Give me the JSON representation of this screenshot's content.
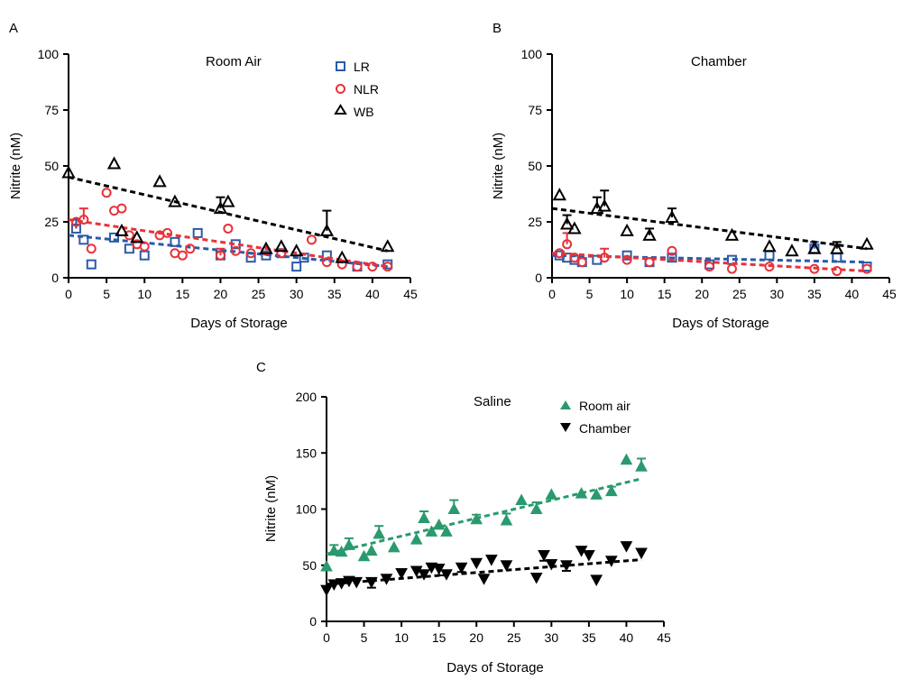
{
  "colors": {
    "LR": "#2b5aa8",
    "NLR": "#e8323a",
    "WB": "#000000",
    "room_air": "#2a9a6e",
    "chamber": "#000000"
  },
  "chart_data": [
    {
      "panel": "A",
      "type": "scatter",
      "title": "Room Air",
      "xlabel": "Days of Storage",
      "ylabel": "Nitrite (nM)",
      "xlim": [
        0,
        45
      ],
      "ylim": [
        0,
        100
      ],
      "xticks": [
        0,
        5,
        10,
        15,
        20,
        25,
        30,
        35,
        40,
        45
      ],
      "yticks": [
        0,
        25,
        50,
        75,
        100
      ],
      "legend_position": "top-right",
      "series": [
        {
          "name": "LR",
          "marker": "square",
          "color": "#2b5aa8",
          "x": [
            1,
            2,
            3,
            6,
            8,
            10,
            14,
            17,
            20,
            22,
            24,
            26,
            28,
            30,
            31,
            34,
            38,
            42
          ],
          "y": [
            22,
            17,
            6,
            18,
            13,
            10,
            16,
            20,
            10,
            15,
            9,
            10,
            11,
            5,
            9,
            10,
            5,
            6
          ],
          "err": [
            {
              "x": 1,
              "y": 22,
              "e": 4
            }
          ],
          "trend": {
            "x0": 0,
            "y0": 19,
            "x1": 42,
            "y1": 5
          }
        },
        {
          "name": "NLR",
          "marker": "circle",
          "color": "#e8323a",
          "x": [
            1,
            2,
            3,
            5,
            6,
            7,
            8,
            9,
            10,
            12,
            13,
            14,
            15,
            16,
            20,
            21,
            22,
            24,
            26,
            28,
            32,
            34,
            36,
            38,
            40,
            42
          ],
          "y": [
            25,
            26,
            13,
            38,
            30,
            31,
            19,
            15,
            14,
            19,
            20,
            11,
            10,
            13,
            10,
            22,
            12,
            11,
            12,
            11,
            17,
            7,
            6,
            5,
            5,
            5
          ],
          "err": [
            {
              "x": 2,
              "y": 26,
              "e": 5
            },
            {
              "x": 20,
              "y": 10,
              "e": 3
            }
          ],
          "trend": {
            "x0": 0,
            "y0": 26,
            "x1": 42,
            "y1": 5
          }
        },
        {
          "name": "WB",
          "marker": "triangle",
          "color": "#000000",
          "x": [
            0,
            6,
            7,
            9,
            12,
            14,
            20,
            21,
            26,
            28,
            30,
            34,
            36,
            42
          ],
          "y": [
            47,
            51,
            21,
            18,
            43,
            34,
            31,
            34,
            13,
            14,
            12,
            21,
            9,
            14
          ],
          "err": [
            {
              "x": 20,
              "y": 31,
              "e": 5
            },
            {
              "x": 34,
              "y": 21,
              "e": 9
            }
          ],
          "trend": {
            "x0": 0,
            "y0": 45,
            "x1": 42,
            "y1": 12
          }
        }
      ]
    },
    {
      "panel": "B",
      "type": "scatter",
      "title": "Chamber",
      "xlabel": "Days of Storage",
      "ylabel": "Nitrite (nM)",
      "xlim": [
        0,
        45
      ],
      "ylim": [
        0,
        100
      ],
      "xticks": [
        0,
        5,
        10,
        15,
        20,
        25,
        30,
        35,
        40,
        45
      ],
      "yticks": [
        0,
        25,
        50,
        75,
        100
      ],
      "series": [
        {
          "name": "LR",
          "marker": "square",
          "color": "#2b5aa8",
          "x": [
            1,
            2,
            3,
            4,
            6,
            10,
            13,
            16,
            21,
            24,
            29,
            35,
            38,
            42
          ],
          "y": [
            10,
            9,
            8,
            7,
            8,
            10,
            7,
            9,
            6,
            8,
            10,
            13,
            9,
            5
          ],
          "err": [
            {
              "x": 35,
              "y": 13,
              "e": 3
            }
          ],
          "trend": {
            "x0": 0,
            "y0": 10,
            "x1": 42,
            "y1": 7
          }
        },
        {
          "name": "NLR",
          "marker": "circle",
          "color": "#e8323a",
          "x": [
            1,
            2,
            3,
            4,
            7,
            10,
            13,
            16,
            21,
            24,
            29,
            35,
            38,
            42
          ],
          "y": [
            11,
            15,
            9,
            7,
            9,
            8,
            7,
            12,
            5,
            4,
            5,
            4,
            3,
            4
          ],
          "err": [
            {
              "x": 2,
              "y": 15,
              "e": 5
            },
            {
              "x": 7,
              "y": 9,
              "e": 4
            }
          ],
          "trend": {
            "x0": 0,
            "y0": 11,
            "x1": 42,
            "y1": 3
          }
        },
        {
          "name": "WB",
          "marker": "triangle",
          "color": "#000000",
          "x": [
            1,
            2,
            3,
            6,
            7,
            10,
            13,
            16,
            24,
            29,
            32,
            35,
            38,
            42
          ],
          "y": [
            37,
            24,
            22,
            31,
            32,
            21,
            19,
            27,
            19,
            14,
            12,
            13,
            13,
            15
          ],
          "err": [
            {
              "x": 2,
              "y": 24,
              "e": 4
            },
            {
              "x": 6,
              "y": 31,
              "e": 5
            },
            {
              "x": 7,
              "y": 32,
              "e": 7
            },
            {
              "x": 13,
              "y": 19,
              "e": 3
            },
            {
              "x": 16,
              "y": 27,
              "e": 4
            },
            {
              "x": 38,
              "y": 13,
              "e": 3
            }
          ],
          "trend": {
            "x0": 0,
            "y0": 31,
            "x1": 42,
            "y1": 13
          }
        }
      ]
    },
    {
      "panel": "C",
      "type": "scatter",
      "title": "Saline",
      "xlabel": "Days of Storage",
      "ylabel": "Nitrite (nM)",
      "xlim": [
        0,
        45
      ],
      "ylim": [
        0,
        200
      ],
      "xticks": [
        0,
        5,
        10,
        15,
        20,
        25,
        30,
        35,
        40,
        45
      ],
      "yticks": [
        0,
        50,
        100,
        150,
        200
      ],
      "legend_position": "top-right",
      "series": [
        {
          "name": "Room air",
          "marker": "triangle",
          "color": "#2a9a6e",
          "x": [
            0,
            1,
            2,
            3,
            5,
            6,
            7,
            9,
            12,
            13,
            14,
            15,
            16,
            17,
            20,
            24,
            26,
            28,
            30,
            34,
            36,
            38,
            40,
            42
          ],
          "y": [
            49,
            63,
            62,
            68,
            58,
            63,
            78,
            66,
            73,
            92,
            80,
            86,
            80,
            100,
            91,
            90,
            108,
            100,
            113,
            114,
            113,
            116,
            144,
            138
          ],
          "err": [
            {
              "x": 1,
              "y": 63,
              "e": 5
            },
            {
              "x": 3,
              "y": 68,
              "e": 6
            },
            {
              "x": 7,
              "y": 78,
              "e": 7
            },
            {
              "x": 13,
              "y": 92,
              "e": 6
            },
            {
              "x": 17,
              "y": 100,
              "e": 8
            },
            {
              "x": 20,
              "y": 91,
              "e": 4
            },
            {
              "x": 24,
              "y": 90,
              "e": 6
            },
            {
              "x": 28,
              "y": 100,
              "e": 6
            },
            {
              "x": 38,
              "y": 116,
              "e": 4
            },
            {
              "x": 42,
              "y": 138,
              "e": 7
            }
          ],
          "trend": {
            "x0": 0,
            "y0": 60,
            "x1": 42,
            "y1": 127
          }
        },
        {
          "name": "Chamber",
          "marker": "triangle-down",
          "color": "#000000",
          "x": [
            0,
            1,
            2,
            3,
            4,
            6,
            8,
            10,
            12,
            13,
            14,
            15,
            16,
            18,
            20,
            21,
            22,
            24,
            28,
            29,
            30,
            32,
            34,
            35,
            36,
            38,
            40,
            42
          ],
          "y": [
            28,
            33,
            34,
            36,
            35,
            35,
            38,
            43,
            45,
            42,
            48,
            47,
            42,
            48,
            52,
            38,
            55,
            50,
            39,
            59,
            51,
            50,
            63,
            59,
            37,
            54,
            67,
            61
          ],
          "err": [
            {
              "x": 6,
              "y": 35,
              "e": 5
            },
            {
              "x": 15,
              "y": 47,
              "e": 6
            },
            {
              "x": 18,
              "y": 48,
              "e": 4
            },
            {
              "x": 29,
              "y": 59,
              "e": 5
            },
            {
              "x": 32,
              "y": 50,
              "e": 5
            }
          ],
          "trend": {
            "x0": 0,
            "y0": 33,
            "x1": 42,
            "y1": 55
          }
        }
      ]
    }
  ]
}
